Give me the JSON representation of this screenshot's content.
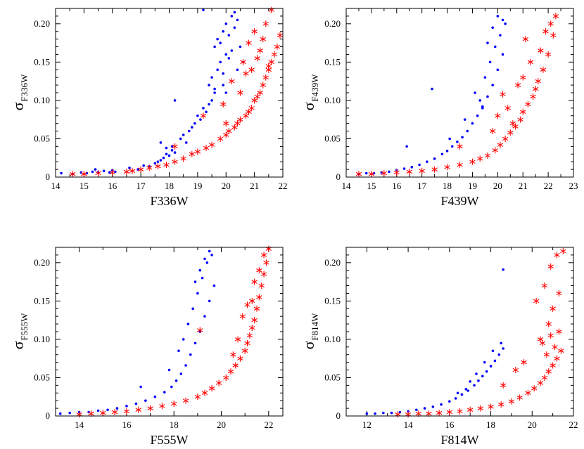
{
  "figure": {
    "layout": "2x2",
    "panel_names": [
      "F336W",
      "F439W",
      "F555W",
      "F814W"
    ]
  },
  "chart_data": [
    {
      "type": "scatter",
      "xlabel": "F336W",
      "ylabel_symbol": "σ",
      "ylabel_sub": "F336W",
      "xlim": [
        14,
        22
      ],
      "ylim": [
        0,
        0.22
      ],
      "xticks": [
        14,
        15,
        16,
        17,
        18,
        19,
        20,
        21,
        22
      ],
      "yticks": [
        0,
        0.05,
        0.1,
        0.15,
        0.2
      ],
      "ytick_labels": [
        "0",
        "0.05",
        "0.10",
        "0.15",
        "0.20"
      ],
      "series": [
        {
          "name": "dots",
          "marker": "dot",
          "color": "#0000ff",
          "x": [
            14.2,
            14.6,
            14.9,
            15.1,
            15.3,
            15.5,
            15.7,
            15.9,
            16.0,
            16.1,
            15.4,
            16.6,
            16.9,
            17.1,
            17.3,
            17.5,
            17.6,
            17.7,
            17.8,
            17.9,
            18.0,
            18.1,
            18.1,
            18.2,
            17.7,
            17.9,
            18.4,
            18.5,
            18.6,
            18.7,
            18.8,
            18.9,
            19.0,
            19.1,
            19.2,
            19.3,
            19.4,
            19.5,
            19.6,
            18.2,
            19.4,
            19.5,
            19.6,
            19.7,
            19.8,
            19.9,
            20.0,
            20.1,
            19.6,
            19.7,
            19.8,
            19.9,
            20.0,
            20.1,
            20.2,
            20.3,
            19.2,
            20.2,
            20.3,
            20.4,
            20.5,
            20.6,
            20.4,
            19.9,
            20.0
          ],
          "y": [
            0.005,
            0.004,
            0.006,
            0.005,
            0.007,
            0.006,
            0.008,
            0.006,
            0.009,
            0.007,
            0.01,
            0.012,
            0.01,
            0.015,
            0.014,
            0.018,
            0.02,
            0.022,
            0.025,
            0.03,
            0.028,
            0.035,
            0.04,
            0.032,
            0.045,
            0.038,
            0.05,
            0.055,
            0.045,
            0.06,
            0.065,
            0.07,
            0.08,
            0.075,
            0.09,
            0.085,
            0.095,
            0.1,
            0.11,
            0.1,
            0.12,
            0.13,
            0.115,
            0.14,
            0.15,
            0.135,
            0.16,
            0.155,
            0.17,
            0.18,
            0.175,
            0.19,
            0.2,
            0.185,
            0.21,
            0.215,
            0.218,
            0.165,
            0.195,
            0.205,
            0.17,
            0.15,
            0.14,
            0.12,
            0.11
          ]
        },
        {
          "name": "asterisks",
          "marker": "asterisk",
          "color": "#ff0000",
          "x": [
            14.6,
            15.0,
            15.5,
            16.0,
            16.5,
            16.7,
            17.0,
            17.3,
            17.6,
            17.9,
            18.2,
            18.5,
            18.8,
            19.0,
            19.3,
            19.5,
            19.8,
            20.0,
            20.1,
            20.3,
            20.4,
            20.5,
            20.7,
            20.8,
            20.9,
            21.0,
            21.1,
            21.2,
            21.3,
            21.4,
            21.5,
            21.6,
            21.7,
            21.8,
            19.2,
            18.2,
            19.9,
            20.2,
            20.6,
            20.8,
            21.0,
            21.2,
            21.4,
            20.5,
            20.9,
            21.3,
            21.6,
            20.0,
            20.7,
            21.1,
            21.5,
            21.9
          ],
          "y": [
            0.004,
            0.004,
            0.005,
            0.006,
            0.007,
            0.008,
            0.01,
            0.012,
            0.014,
            0.016,
            0.02,
            0.024,
            0.03,
            0.033,
            0.038,
            0.042,
            0.05,
            0.055,
            0.06,
            0.065,
            0.07,
            0.075,
            0.08,
            0.085,
            0.09,
            0.1,
            0.105,
            0.11,
            0.12,
            0.13,
            0.14,
            0.15,
            0.16,
            0.17,
            0.08,
            0.04,
            0.095,
            0.125,
            0.15,
            0.175,
            0.19,
            0.165,
            0.2,
            0.11,
            0.14,
            0.18,
            0.218,
            0.07,
            0.135,
            0.155,
            0.145,
            0.185
          ]
        }
      ]
    },
    {
      "type": "scatter",
      "xlabel": "F439W",
      "ylabel_symbol": "σ",
      "ylabel_sub": "F439W",
      "xlim": [
        14,
        23
      ],
      "ylim": [
        0,
        0.22
      ],
      "xticks": [
        14,
        15,
        16,
        17,
        18,
        19,
        20,
        21,
        22,
        23
      ],
      "yticks": [
        0,
        0.05,
        0.1,
        0.15,
        0.2
      ],
      "ytick_labels": [
        "0",
        "0.05",
        "0.10",
        "0.15",
        "0.20"
      ],
      "series": [
        {
          "name": "dots",
          "marker": "dot",
          "color": "#0000ff",
          "x": [
            14.5,
            14.8,
            15.1,
            15.4,
            15.7,
            16.0,
            16.3,
            16.6,
            16.9,
            17.2,
            17.5,
            17.8,
            18.0,
            18.2,
            18.4,
            18.6,
            18.8,
            19.0,
            19.2,
            19.4,
            19.6,
            19.8,
            20.0,
            20.2,
            16.4,
            17.4,
            18.1,
            18.7,
            19.1,
            19.3,
            19.5,
            19.7,
            19.9,
            20.1,
            20.3,
            19.6,
            19.8,
            20.0,
            20.2,
            19.4
          ],
          "y": [
            0.004,
            0.005,
            0.005,
            0.006,
            0.007,
            0.009,
            0.011,
            0.013,
            0.016,
            0.02,
            0.024,
            0.03,
            0.034,
            0.04,
            0.046,
            0.052,
            0.06,
            0.07,
            0.08,
            0.092,
            0.105,
            0.12,
            0.14,
            0.16,
            0.04,
            0.115,
            0.05,
            0.075,
            0.11,
            0.1,
            0.13,
            0.15,
            0.17,
            0.185,
            0.2,
            0.175,
            0.195,
            0.21,
            0.205,
            0.09
          ]
        },
        {
          "name": "asterisks",
          "marker": "asterisk",
          "color": "#ff0000",
          "x": [
            14.5,
            15.0,
            15.5,
            16.0,
            16.5,
            17.0,
            17.5,
            18.0,
            18.5,
            19.0,
            19.3,
            19.6,
            19.9,
            20.1,
            20.3,
            20.5,
            20.7,
            20.9,
            21.0,
            21.2,
            21.4,
            21.5,
            21.6,
            21.8,
            22.0,
            22.2,
            22.3,
            18.5,
            20.2,
            20.6,
            21.0,
            21.3,
            21.7,
            20.8,
            21.1,
            20.4,
            21.9,
            22.1,
            19.8,
            20.0
          ],
          "y": [
            0.004,
            0.004,
            0.005,
            0.006,
            0.007,
            0.008,
            0.01,
            0.013,
            0.016,
            0.02,
            0.024,
            0.028,
            0.035,
            0.042,
            0.05,
            0.058,
            0.066,
            0.075,
            0.085,
            0.095,
            0.105,
            0.115,
            0.125,
            0.14,
            0.16,
            0.185,
            0.21,
            0.04,
            0.108,
            0.07,
            0.13,
            0.15,
            0.165,
            0.12,
            0.18,
            0.09,
            0.19,
            0.2,
            0.06,
            0.08
          ]
        }
      ]
    },
    {
      "type": "scatter",
      "xlabel": "F555W",
      "ylabel_symbol": "σ",
      "ylabel_sub": "F555W",
      "xlim": [
        13,
        22.6
      ],
      "ylim": [
        0,
        0.22
      ],
      "xticks": [
        14,
        16,
        18,
        20,
        22
      ],
      "yticks": [
        0,
        0.05,
        0.1,
        0.15,
        0.2
      ],
      "ytick_labels": [
        "0",
        "0.05",
        "0.10",
        "0.15",
        "0.20"
      ],
      "series": [
        {
          "name": "dots",
          "marker": "dot",
          "color": "#0000ff",
          "x": [
            13.2,
            13.6,
            14.0,
            14.4,
            14.8,
            15.2,
            15.6,
            16.0,
            16.4,
            16.8,
            17.2,
            17.6,
            17.9,
            18.1,
            18.3,
            18.5,
            18.7,
            18.9,
            19.1,
            19.3,
            19.5,
            19.7,
            16.6,
            17.8,
            18.2,
            18.6,
            18.8,
            19.0,
            19.2,
            19.4,
            19.6,
            18.4,
            19.1,
            19.3,
            19.5,
            18.9
          ],
          "y": [
            0.003,
            0.004,
            0.005,
            0.005,
            0.007,
            0.008,
            0.01,
            0.013,
            0.016,
            0.02,
            0.025,
            0.031,
            0.038,
            0.046,
            0.055,
            0.066,
            0.08,
            0.095,
            0.11,
            0.13,
            0.15,
            0.17,
            0.038,
            0.06,
            0.085,
            0.12,
            0.14,
            0.16,
            0.18,
            0.2,
            0.21,
            0.1,
            0.19,
            0.205,
            0.215,
            0.175
          ]
        },
        {
          "name": "asterisks",
          "marker": "asterisk",
          "color": "#ff0000",
          "x": [
            14.0,
            14.5,
            15.0,
            15.5,
            16.0,
            16.5,
            17.0,
            17.5,
            18.0,
            18.5,
            19.0,
            19.3,
            19.6,
            19.9,
            20.2,
            20.4,
            20.6,
            20.8,
            21.0,
            21.1,
            21.2,
            21.3,
            21.4,
            21.5,
            21.6,
            21.7,
            21.8,
            21.9,
            22.0,
            19.1,
            20.5,
            20.9,
            21.3,
            21.6,
            20.7,
            21.1,
            21.4,
            21.8
          ],
          "y": [
            0.002,
            0.003,
            0.004,
            0.005,
            0.006,
            0.008,
            0.01,
            0.013,
            0.016,
            0.02,
            0.025,
            0.03,
            0.036,
            0.043,
            0.05,
            0.058,
            0.066,
            0.075,
            0.085,
            0.095,
            0.105,
            0.115,
            0.125,
            0.14,
            0.155,
            0.17,
            0.185,
            0.2,
            0.218,
            0.112,
            0.08,
            0.13,
            0.15,
            0.19,
            0.1,
            0.145,
            0.175,
            0.21
          ]
        }
      ]
    },
    {
      "type": "scatter",
      "xlabel": "F814W",
      "ylabel_symbol": "σ",
      "ylabel_sub": "F814W",
      "xlim": [
        11,
        22
      ],
      "ylim": [
        0,
        0.22
      ],
      "xticks": [
        12,
        14,
        16,
        18,
        20,
        22
      ],
      "yticks": [
        0,
        0.05,
        0.1,
        0.15,
        0.2
      ],
      "ytick_labels": [
        "0",
        "0.05",
        "0.10",
        "0.15",
        "0.20"
      ],
      "series": [
        {
          "name": "dots",
          "marker": "dot",
          "color": "#0000ff",
          "x": [
            12.0,
            12.4,
            12.8,
            13.2,
            13.6,
            14.0,
            14.4,
            14.8,
            15.2,
            15.6,
            16.0,
            16.3,
            16.6,
            16.9,
            17.2,
            17.4,
            17.6,
            17.8,
            18.0,
            18.2,
            18.4,
            18.6,
            16.8,
            17.3,
            17.7,
            18.1,
            18.5,
            18.6,
            17.0,
            16.4
          ],
          "y": [
            0.003,
            0.003,
            0.004,
            0.004,
            0.005,
            0.006,
            0.008,
            0.01,
            0.012,
            0.015,
            0.019,
            0.023,
            0.028,
            0.033,
            0.04,
            0.046,
            0.052,
            0.058,
            0.065,
            0.072,
            0.08,
            0.088,
            0.035,
            0.055,
            0.07,
            0.085,
            0.095,
            0.191,
            0.045,
            0.03
          ]
        },
        {
          "name": "asterisks",
          "marker": "asterisk",
          "color": "#ff0000",
          "x": [
            13.5,
            14.0,
            14.5,
            15.0,
            15.5,
            16.0,
            16.5,
            17.0,
            17.5,
            18.0,
            18.5,
            19.0,
            19.4,
            19.8,
            20.1,
            20.4,
            20.6,
            20.8,
            21.0,
            21.2,
            21.4,
            20.5,
            20.9,
            21.3,
            20.7,
            21.1,
            21.0,
            21.3,
            20.6,
            20.2,
            19.2,
            18.6,
            20.9,
            21.2,
            20.4,
            20.8,
            19.6,
            21.5
          ],
          "y": [
            0.002,
            0.002,
            0.003,
            0.003,
            0.004,
            0.005,
            0.006,
            0.008,
            0.01,
            0.012,
            0.015,
            0.019,
            0.024,
            0.03,
            0.036,
            0.043,
            0.05,
            0.058,
            0.066,
            0.075,
            0.085,
            0.095,
            0.105,
            0.11,
            0.08,
            0.09,
            0.14,
            0.16,
            0.17,
            0.15,
            0.06,
            0.04,
            0.195,
            0.21,
            0.1,
            0.12,
            0.07,
            0.215
          ]
        }
      ]
    }
  ]
}
